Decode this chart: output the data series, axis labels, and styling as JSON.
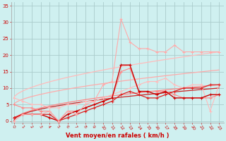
{
  "background_color": "#cff0f0",
  "grid_color": "#aacccc",
  "xlabel": "Vent moyen/en rafales ( km/h )",
  "text_color": "#cc0000",
  "yticks": [
    0,
    5,
    10,
    15,
    20,
    25,
    30,
    35
  ],
  "xticks": [
    0,
    1,
    2,
    3,
    4,
    5,
    6,
    7,
    8,
    9,
    10,
    11,
    12,
    13,
    14,
    15,
    16,
    17,
    18,
    19,
    20,
    21,
    22,
    23
  ],
  "xlim": [
    -0.3,
    23.5
  ],
  "ylim": [
    -0.5,
    36
  ],
  "smooth_lines": [
    {
      "start": 7.0,
      "end": 21.0,
      "color": "#ffbbbb",
      "lw": 0.9
    },
    {
      "start": 5.0,
      "end": 15.5,
      "color": "#ffaaaa",
      "lw": 0.9
    },
    {
      "start": 0.0,
      "end": 11.0,
      "color": "#ff8888",
      "lw": 0.9
    },
    {
      "start": 0.0,
      "end": 10.0,
      "color": "#cc2222",
      "lw": 0.9
    }
  ],
  "data_lines": [
    {
      "y": [
        7,
        6,
        5,
        5,
        4,
        4,
        5,
        5,
        6,
        6,
        7,
        8,
        9,
        10,
        11,
        12,
        12,
        13,
        11,
        10,
        11,
        11,
        3,
        11
      ],
      "color": "#ffbbbb",
      "lw": 0.8,
      "marker": "+"
    },
    {
      "y": [
        5,
        4,
        4,
        3,
        3,
        0,
        3,
        3,
        4,
        5,
        6,
        7,
        15,
        16,
        9,
        9,
        9,
        9,
        8,
        7,
        7,
        7,
        7,
        8
      ],
      "color": "#ff8888",
      "lw": 0.8,
      "marker": "+"
    },
    {
      "y": [
        1,
        2,
        2,
        2,
        1,
        0,
        2,
        3,
        4,
        5,
        6,
        7,
        17,
        17,
        9,
        9,
        8,
        9,
        7,
        7,
        7,
        7,
        8,
        8
      ],
      "color": "#cc0000",
      "lw": 1.0,
      "marker": "+"
    },
    {
      "y": [
        1,
        2,
        2,
        2,
        2,
        0,
        1,
        2,
        3,
        4,
        5,
        6,
        8,
        9,
        8,
        7,
        7,
        8,
        9,
        10,
        10,
        10,
        11,
        11
      ],
      "color": "#dd2222",
      "lw": 0.9,
      "marker": "+"
    },
    {
      "y": [
        0,
        2,
        2,
        2,
        3,
        0,
        3,
        2,
        5,
        6,
        11,
        12,
        31,
        24,
        22,
        22,
        21,
        21,
        23,
        21,
        21,
        21,
        21,
        21
      ],
      "color": "#ffaaaa",
      "lw": 0.8,
      "marker": "+"
    }
  ]
}
